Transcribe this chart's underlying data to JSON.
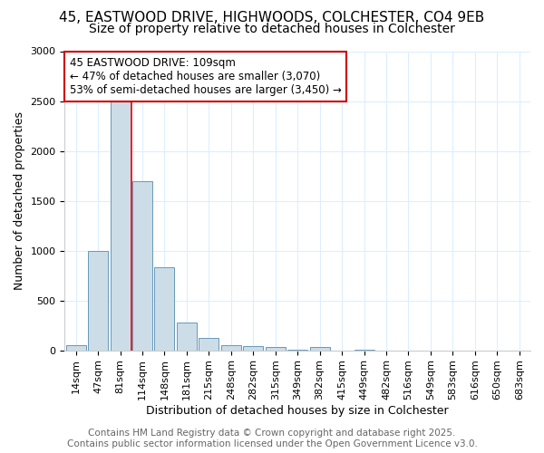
{
  "title_line1": "45, EASTWOOD DRIVE, HIGHWOODS, COLCHESTER, CO4 9EB",
  "title_line2": "Size of property relative to detached houses in Colchester",
  "xlabel": "Distribution of detached houses by size in Colchester",
  "ylabel": "Number of detached properties",
  "categories": [
    "14sqm",
    "47sqm",
    "81sqm",
    "114sqm",
    "148sqm",
    "181sqm",
    "215sqm",
    "248sqm",
    "282sqm",
    "315sqm",
    "349sqm",
    "382sqm",
    "415sqm",
    "449sqm",
    "482sqm",
    "516sqm",
    "549sqm",
    "583sqm",
    "616sqm",
    "650sqm",
    "683sqm"
  ],
  "values": [
    50,
    1000,
    2500,
    1700,
    830,
    275,
    120,
    55,
    40,
    30,
    5,
    30,
    0,
    5,
    0,
    0,
    0,
    0,
    0,
    0,
    0
  ],
  "bar_color": "#ccdde8",
  "bar_edge_color": "#6699bb",
  "ylim": [
    0,
    3000
  ],
  "yticks": [
    0,
    500,
    1000,
    1500,
    2000,
    2500,
    3000
  ],
  "property_line_index": 2.5,
  "annotation_text_line1": "45 EASTWOOD DRIVE: 109sqm",
  "annotation_text_line2": "← 47% of detached houses are smaller (3,070)",
  "annotation_text_line3": "53% of semi-detached houses are larger (3,450) →",
  "annotation_box_facecolor": "white",
  "annotation_box_edge": "#cc0000",
  "footer_line1": "Contains HM Land Registry data © Crown copyright and database right 2025.",
  "footer_line2": "Contains public sector information licensed under the Open Government Licence v3.0.",
  "bg_color": "#ffffff",
  "plot_bg_color": "#ffffff",
  "grid_color": "#ddeeff",
  "title_fontsize": 11,
  "subtitle_fontsize": 10,
  "axis_label_fontsize": 9,
  "tick_fontsize": 8,
  "annotation_fontsize": 8.5,
  "footer_fontsize": 7.5
}
